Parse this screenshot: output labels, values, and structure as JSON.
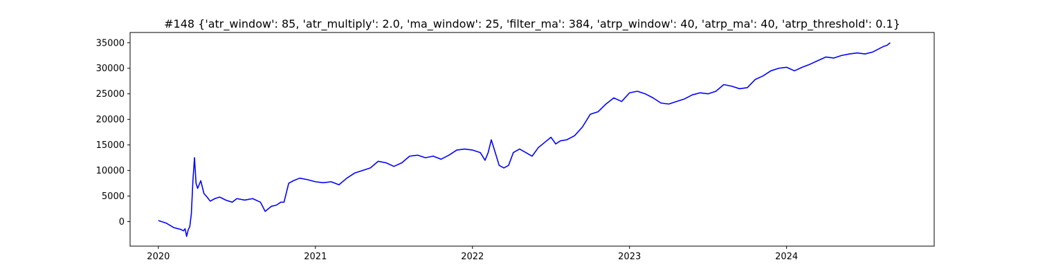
{
  "chart_data": {
    "type": "line",
    "title": "#148 {'atr_window': 85, 'atr_multiply': 2.0, 'ma_window': 25, 'filter_ma': 384, 'atrp_window': 40, 'atrp_ma': 40, 'atrp_threshold': 0.1}",
    "xlabel": "",
    "ylabel": "",
    "xlim": [
      2019.82,
      2024.94
    ],
    "ylim": [
      -4800,
      37000
    ],
    "x_ticks": [
      2020,
      2021,
      2022,
      2023,
      2024
    ],
    "x_tick_labels": [
      "2020",
      "2021",
      "2022",
      "2023",
      "2024"
    ],
    "y_ticks": [
      0,
      5000,
      10000,
      15000,
      20000,
      25000,
      30000,
      35000
    ],
    "y_tick_labels": [
      "0",
      "5000",
      "10000",
      "15000",
      "20000",
      "25000",
      "30000",
      "35000"
    ],
    "grid": false,
    "legend": "none",
    "series": [
      {
        "color": "#0000ff",
        "x": [
          2020.0,
          2020.05,
          2020.1,
          2020.14,
          2020.16,
          2020.17,
          2020.18,
          2020.19,
          2020.2,
          2020.21,
          2020.22,
          2020.23,
          2020.24,
          2020.25,
          2020.27,
          2020.29,
          2020.31,
          2020.33,
          2020.36,
          2020.39,
          2020.43,
          2020.47,
          2020.5,
          2020.55,
          2020.6,
          2020.65,
          2020.68,
          2020.7,
          2020.72,
          2020.75,
          2020.78,
          2020.8,
          2020.83,
          2020.86,
          2020.9,
          2020.95,
          2021.0,
          2021.05,
          2021.1,
          2021.15,
          2021.2,
          2021.25,
          2021.3,
          2021.35,
          2021.4,
          2021.45,
          2021.5,
          2021.55,
          2021.6,
          2021.65,
          2021.7,
          2021.75,
          2021.8,
          2021.85,
          2021.9,
          2021.95,
          2022.0,
          2022.05,
          2022.08,
          2022.1,
          2022.12,
          2022.14,
          2022.17,
          2022.2,
          2022.23,
          2022.26,
          2022.3,
          2022.34,
          2022.38,
          2022.42,
          2022.46,
          2022.5,
          2022.53,
          2022.56,
          2022.6,
          2022.65,
          2022.7,
          2022.75,
          2022.8,
          2022.85,
          2022.9,
          2022.95,
          2023.0,
          2023.05,
          2023.1,
          2023.15,
          2023.2,
          2023.25,
          2023.3,
          2023.35,
          2023.4,
          2023.45,
          2023.5,
          2023.55,
          2023.6,
          2023.65,
          2023.7,
          2023.75,
          2023.8,
          2023.85,
          2023.9,
          2023.95,
          2024.0,
          2024.05,
          2024.1,
          2024.15,
          2024.2,
          2024.25,
          2024.3,
          2024.35,
          2024.4,
          2024.45,
          2024.5,
          2024.55,
          2024.6,
          2024.62,
          2024.64,
          2024.66
        ],
        "y": [
          200,
          -300,
          -1200,
          -1500,
          -1800,
          -1400,
          -2900,
          -1600,
          -1000,
          1500,
          8000,
          12500,
          7500,
          6500,
          8000,
          5500,
          4800,
          4000,
          4500,
          4800,
          4200,
          3800,
          4500,
          4200,
          4500,
          3800,
          2000,
          2500,
          3000,
          3200,
          3800,
          3800,
          7500,
          8000,
          8500,
          8200,
          7800,
          7600,
          7800,
          7200,
          8500,
          9500,
          10000,
          10500,
          11800,
          11500,
          10800,
          11500,
          12800,
          13000,
          12500,
          12800,
          12200,
          13000,
          14000,
          14200,
          14000,
          13500,
          12000,
          13500,
          16000,
          14000,
          11000,
          10500,
          11000,
          13500,
          14200,
          13500,
          12800,
          14500,
          15500,
          16500,
          15200,
          15800,
          16000,
          16800,
          18500,
          21000,
          21500,
          23000,
          24200,
          23500,
          25200,
          25500,
          25000,
          24200,
          23200,
          23000,
          23500,
          24000,
          24800,
          25200,
          25000,
          25500,
          26800,
          26500,
          26000,
          26200,
          27800,
          28500,
          29500,
          30000,
          30200,
          29500,
          30200,
          30800,
          31500,
          32200,
          32000,
          32500,
          32800,
          33000,
          32800,
          33200,
          34000,
          34300,
          34500,
          35000
        ]
      }
    ]
  }
}
